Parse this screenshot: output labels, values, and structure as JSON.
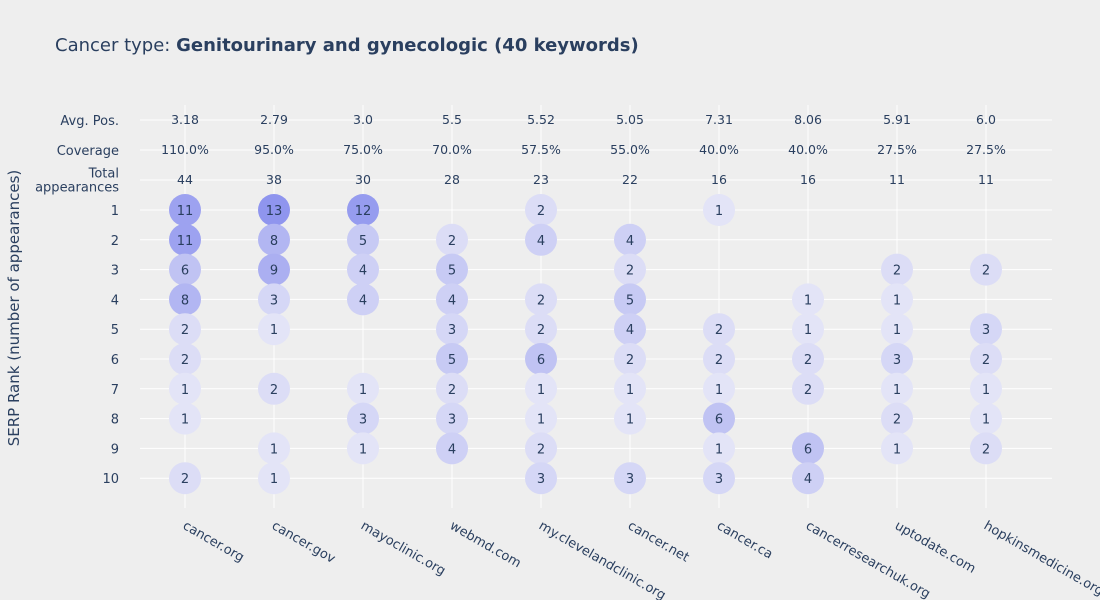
{
  "chart_data": {
    "type": "scatter",
    "title_prefix": "Cancer type: ",
    "title_bold": "Genitourinary and gynecologic (40 keywords)",
    "ylabel": "SERP Rank (number of appearances)",
    "categories": [
      "cancer.org",
      "cancer.gov",
      "mayoclinic.org",
      "webmd.com",
      "my.clevelandclinic.org",
      "cancer.net",
      "cancer.ca",
      "cancerresearchuk.org",
      "uptodate.com",
      "hopkinsmedicine.org"
    ],
    "stat_rows": [
      {
        "label": "Avg. Pos.",
        "values": [
          "3.18",
          "2.79",
          "3.0",
          "5.5",
          "5.52",
          "5.05",
          "7.31",
          "8.06",
          "5.91",
          "6.0"
        ]
      },
      {
        "label": "Coverage",
        "values": [
          "110.0%",
          "95.0%",
          "75.0%",
          "70.0%",
          "57.5%",
          "55.0%",
          "40.0%",
          "40.0%",
          "27.5%",
          "27.5%"
        ]
      },
      {
        "label": "Total\nappearances",
        "values": [
          "44",
          "38",
          "30",
          "28",
          "23",
          "22",
          "16",
          "16",
          "11",
          "11"
        ]
      }
    ],
    "ranks": [
      "1",
      "2",
      "3",
      "4",
      "5",
      "6",
      "7",
      "8",
      "9",
      "10"
    ],
    "counts": [
      [
        11,
        11,
        6,
        8,
        2,
        2,
        1,
        1,
        null,
        2
      ],
      [
        13,
        8,
        9,
        3,
        1,
        null,
        2,
        null,
        1,
        1
      ],
      [
        12,
        5,
        4,
        4,
        null,
        null,
        1,
        3,
        1,
        null
      ],
      [
        null,
        2,
        5,
        4,
        3,
        5,
        2,
        3,
        4,
        null
      ],
      [
        2,
        4,
        null,
        2,
        2,
        6,
        1,
        1,
        2,
        3
      ],
      [
        null,
        4,
        2,
        5,
        4,
        2,
        1,
        1,
        null,
        3
      ],
      [
        1,
        null,
        null,
        null,
        2,
        2,
        1,
        6,
        1,
        3
      ],
      [
        null,
        null,
        null,
        1,
        1,
        2,
        2,
        null,
        6,
        4
      ],
      [
        null,
        null,
        2,
        1,
        1,
        3,
        1,
        2,
        1,
        null
      ],
      [
        null,
        null,
        2,
        null,
        3,
        2,
        1,
        1,
        2,
        null
      ]
    ],
    "colors": {
      "bubble_low": "#e3e4f7",
      "bubble_high": "#8f95ee",
      "background": "#eeeeee",
      "grid": "#ffffff",
      "text": "#2a3f5f"
    },
    "grid": true
  }
}
